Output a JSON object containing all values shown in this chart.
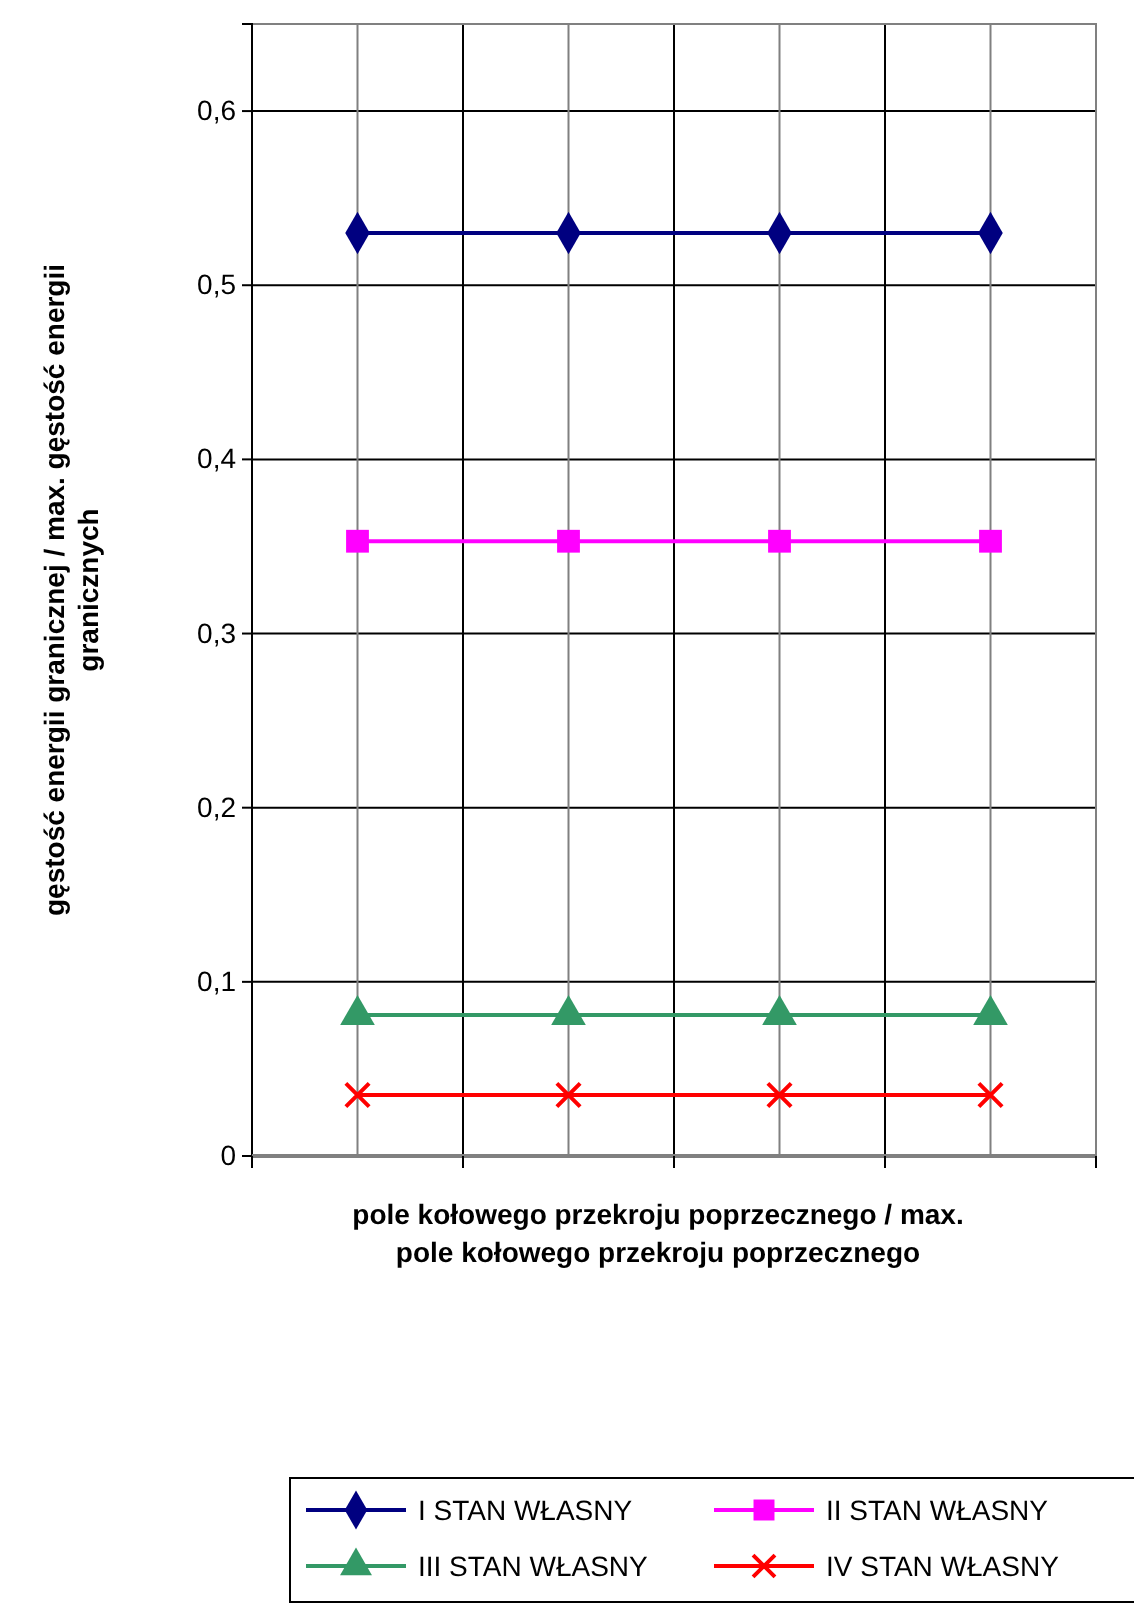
{
  "chart_data": {
    "type": "line",
    "xlabel": "pole kołowego  przekroju poprzecznego / max. pole kołowego przekroju poprzecznego",
    "ylabel": "gęstość energii granicznej / max. gęstość energii granicznych",
    "categories": [
      null,
      null,
      null,
      null
    ],
    "series": [
      {
        "name": "I STAN WŁASNY",
        "color": "#000080",
        "marker": "diamond",
        "values": [
          0.53,
          0.53,
          0.53,
          0.53
        ]
      },
      {
        "name": "II STAN WŁASNY",
        "color": "#ff00ff",
        "marker": "square",
        "values": [
          0.353,
          0.353,
          0.353,
          0.353
        ]
      },
      {
        "name": "III STAN WŁASNY",
        "color": "#339966",
        "marker": "triangle",
        "values": [
          0.081,
          0.081,
          0.081,
          0.081
        ]
      },
      {
        "name": "IV STAN WŁASNY",
        "color": "#ff0000",
        "marker": "cross",
        "values": [
          0.035,
          0.035,
          0.035,
          0.035
        ]
      }
    ],
    "ylim": [
      0,
      0.65
    ],
    "yticks": [
      {
        "value": 0,
        "label": "0"
      },
      {
        "value": 0.1,
        "label": "0,1"
      },
      {
        "value": 0.2,
        "label": "0,2"
      },
      {
        "value": 0.3,
        "label": "0,3"
      },
      {
        "value": 0.4,
        "label": "0,4"
      },
      {
        "value": 0.5,
        "label": "0,5"
      },
      {
        "value": 0.6,
        "label": "0,6"
      }
    ],
    "grid": true,
    "legend": "bottom"
  }
}
